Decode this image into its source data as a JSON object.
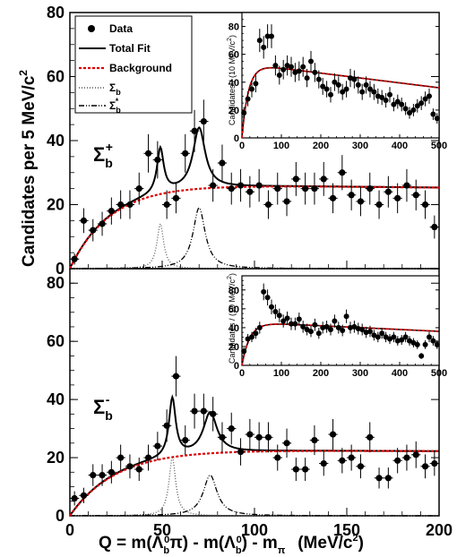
{
  "colors": {
    "data": "#000000",
    "total_fit": "#000000",
    "background": "#dd0000",
    "sigma_b": "#555555",
    "sigma_b_star": "#000000"
  },
  "legend": {
    "entries": [
      {
        "key": "data",
        "label": "Data"
      },
      {
        "key": "total",
        "label": "Total Fit"
      },
      {
        "key": "bkg",
        "label": "Background"
      },
      {
        "key": "sb",
        "label": "Σ",
        "sub": "b",
        "sup": ""
      },
      {
        "key": "sbs",
        "label": "Σ",
        "sub": "b",
        "sup": "*"
      }
    ]
  },
  "labels": {
    "ylabel_main": "Candidates per 5 MeV/c",
    "ylabel_main_sup": "2",
    "xlabel": "Q = m(Λ₀π) - m(Λ₀) - m",
    "xlabel_full": "Q = m(Λ",
    "inset_ylabel": "Candidates / (10 MeV/c",
    "inset_ylabel_end": ")"
  },
  "chart_data": [
    {
      "type": "scatter",
      "panel": "Σb+ main",
      "label": "Σ",
      "label_sub": "b",
      "label_sup": "+",
      "xlim": [
        0,
        200
      ],
      "ylim": [
        0,
        80
      ],
      "xticks": [
        0,
        50,
        100,
        150,
        200
      ],
      "yticks": [
        0,
        20,
        40,
        60,
        80
      ],
      "series": [
        {
          "name": "Data",
          "x": [
            2.5,
            7.5,
            12.5,
            17.5,
            22.5,
            27.5,
            32.5,
            37.5,
            42.5,
            47.5,
            52.5,
            57.5,
            62.5,
            67.5,
            72.5,
            77.5,
            82.5,
            87.5,
            92.5,
            97.5,
            102.5,
            107.5,
            112.5,
            117.5,
            122.5,
            127.5,
            132.5,
            137.5,
            142.5,
            147.5,
            152.5,
            157.5,
            162.5,
            167.5,
            172.5,
            177.5,
            182.5,
            187.5,
            192.5,
            197.5
          ],
          "y": [
            3,
            15,
            12,
            14,
            18,
            20,
            20,
            25,
            36,
            34,
            20,
            22,
            36,
            43,
            46,
            26,
            33,
            25,
            26,
            24,
            26,
            20,
            25,
            21,
            28,
            25,
            25,
            28,
            22,
            30,
            23,
            21,
            25,
            20,
            24,
            22,
            26,
            23,
            20,
            13
          ]
        }
      ],
      "curves": {
        "background": {
          "A": 26,
          "k": 0.045,
          "slope": -0.022,
          "pivot": 80
        },
        "sigma_b": {
          "m": 49,
          "g": 2.2,
          "peak": 14
        },
        "sigma_b_star": {
          "m": 70,
          "g": 4.0,
          "peak": 19
        }
      }
    },
    {
      "type": "scatter",
      "panel": "Σb+ inset",
      "xlim": [
        0,
        500
      ],
      "ylim": [
        0,
        90
      ],
      "xticks": [
        0,
        100,
        200,
        300,
        400,
        500
      ],
      "yticks": [
        0,
        20,
        40,
        60,
        80
      ],
      "series": [
        {
          "name": "Data",
          "x": [
            5,
            15,
            25,
            35,
            45,
            55,
            65,
            75,
            85,
            95,
            105,
            115,
            125,
            135,
            145,
            155,
            165,
            175,
            185,
            195,
            205,
            215,
            225,
            235,
            245,
            255,
            265,
            275,
            285,
            295,
            305,
            315,
            325,
            335,
            345,
            355,
            365,
            375,
            385,
            395,
            405,
            415,
            425,
            435,
            445,
            455,
            465,
            475,
            485,
            495
          ],
          "y": [
            18,
            28,
            35,
            39,
            70,
            65,
            73,
            73,
            52,
            45,
            49,
            52,
            51,
            47,
            48,
            51,
            43,
            55,
            47,
            42,
            37,
            35,
            31,
            40,
            38,
            33,
            35,
            43,
            42,
            38,
            33,
            38,
            35,
            33,
            30,
            29,
            27,
            31,
            24,
            26,
            24,
            21,
            18,
            20,
            23,
            25,
            28,
            30,
            17,
            14
          ]
        }
      ],
      "curves": {
        "background": {
          "A": 50,
          "k": 0.06,
          "slope": -0.07,
          "pivot": 100
        }
      }
    },
    {
      "type": "scatter",
      "panel": "Σb- main",
      "label": "Σ",
      "label_sub": "b",
      "label_sup": "-",
      "xlim": [
        0,
        200
      ],
      "ylim": [
        0,
        85
      ],
      "xticks": [
        0,
        50,
        100,
        150,
        200
      ],
      "yticks": [
        0,
        20,
        40,
        60,
        80
      ],
      "series": [
        {
          "name": "Data",
          "x": [
            2.5,
            7.5,
            12.5,
            17.5,
            22.5,
            27.5,
            32.5,
            37.5,
            42.5,
            47.5,
            52.5,
            57.5,
            62.5,
            67.5,
            72.5,
            77.5,
            82.5,
            87.5,
            92.5,
            97.5,
            102.5,
            107.5,
            112.5,
            117.5,
            122.5,
            127.5,
            132.5,
            137.5,
            142.5,
            147.5,
            152.5,
            157.5,
            162.5,
            167.5,
            172.5,
            177.5,
            182.5,
            187.5,
            192.5,
            197.5
          ],
          "y": [
            6,
            7,
            14,
            14,
            15,
            20,
            17,
            16,
            20,
            24,
            31,
            48,
            26,
            36,
            36,
            35,
            27,
            30,
            22,
            28,
            27,
            27,
            20,
            25,
            16,
            16,
            26,
            18,
            28,
            19,
            20,
            17,
            27,
            13,
            13,
            19,
            20,
            21,
            17,
            18
          ]
        }
      ],
      "curves": {
        "background": {
          "A": 22.5,
          "k": 0.04,
          "slope": -0.012,
          "pivot": 100
        },
        "sigma_b": {
          "m": 55.5,
          "g": 2.2,
          "peak": 20
        },
        "sigma_b_star": {
          "m": 76,
          "g": 4.5,
          "peak": 14
        }
      }
    },
    {
      "type": "scatter",
      "panel": "Σb- inset",
      "xlim": [
        0,
        500
      ],
      "ylim": [
        0,
        95
      ],
      "xticks": [
        0,
        100,
        200,
        300,
        400,
        500
      ],
      "yticks": [
        0,
        20,
        40,
        60,
        80
      ],
      "series": [
        {
          "name": "Data",
          "x": [
            5,
            15,
            25,
            35,
            45,
            55,
            65,
            75,
            85,
            95,
            105,
            115,
            125,
            135,
            145,
            155,
            165,
            175,
            185,
            195,
            205,
            215,
            225,
            235,
            245,
            255,
            265,
            275,
            285,
            295,
            305,
            315,
            325,
            335,
            345,
            355,
            365,
            375,
            385,
            395,
            405,
            415,
            425,
            435,
            445,
            455,
            465,
            475,
            485,
            495
          ],
          "y": [
            15,
            28,
            30,
            34,
            40,
            78,
            72,
            62,
            57,
            53,
            47,
            50,
            44,
            44,
            49,
            41,
            38,
            36,
            43,
            34,
            40,
            41,
            38,
            47,
            40,
            37,
            52,
            40,
            41,
            39,
            38,
            35,
            36,
            32,
            30,
            34,
            30,
            28,
            30,
            26,
            27,
            30,
            26,
            24,
            22,
            10,
            22,
            30,
            26,
            22
          ]
        }
      ],
      "curves": {
        "background": {
          "A": 44,
          "k": 0.05,
          "slope": -0.045,
          "pivot": 100
        }
      }
    }
  ]
}
